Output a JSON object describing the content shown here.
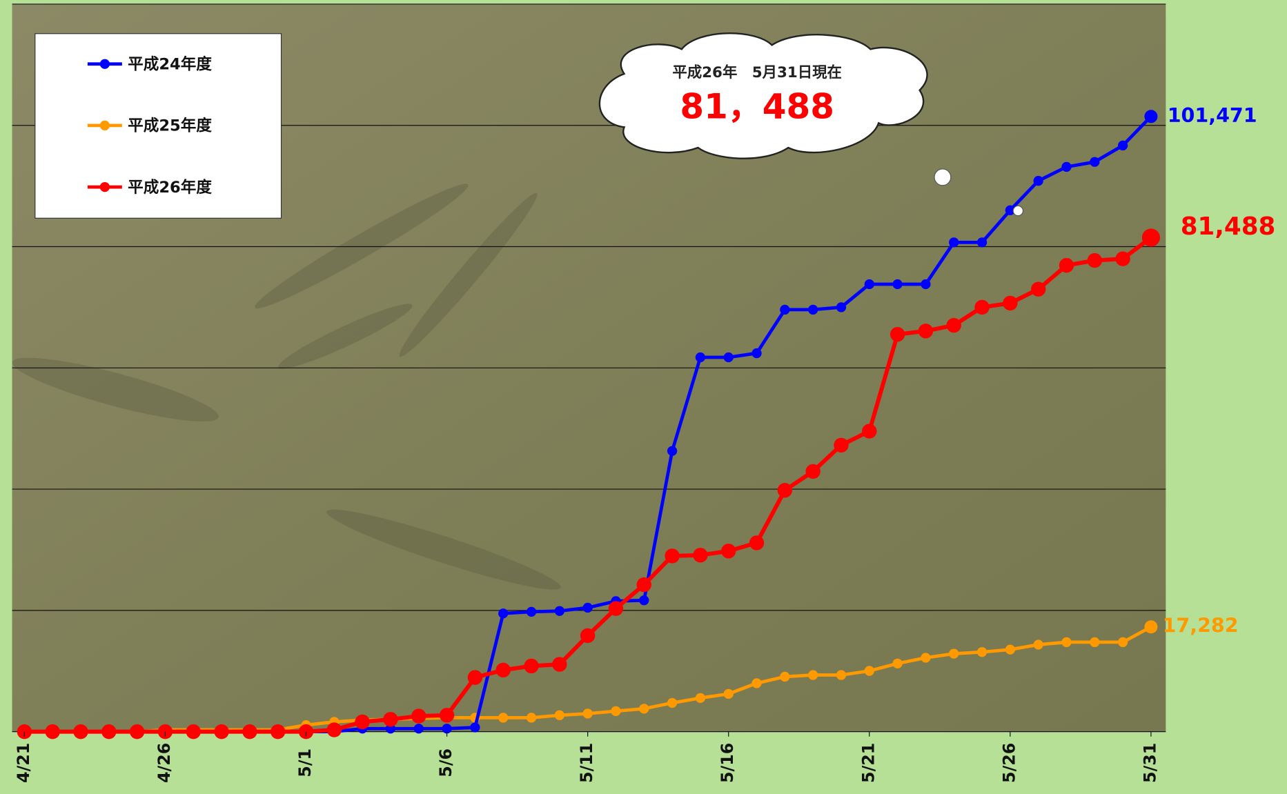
{
  "chart_data": {
    "type": "line",
    "categories": [
      "4/21",
      null,
      null,
      null,
      null,
      "4/26",
      null,
      null,
      null,
      null,
      "5/1",
      null,
      null,
      null,
      null,
      "5/6",
      null,
      null,
      null,
      null,
      "5/11",
      null,
      null,
      null,
      null,
      "5/16",
      null,
      null,
      null,
      null,
      "5/21",
      null,
      null,
      null,
      null,
      "5/26",
      null,
      null,
      null,
      null,
      "5/31"
    ],
    "series": [
      {
        "name": "平成25年度",
        "color": "#ff9900",
        "values": [
          0,
          0,
          0,
          0,
          0,
          300,
          300,
          300,
          300,
          300,
          1080,
          1620,
          1900,
          2030,
          2170,
          2300,
          2300,
          2300,
          2300,
          2710,
          2980,
          3390,
          3790,
          4740,
          5550,
          6230,
          7990,
          9070,
          9340,
          9340,
          10020,
          11240,
          12190,
          12860,
          13130,
          13540,
          14350,
          14760,
          14760,
          14760,
          17282
        ],
        "value_labels": [
          null,
          null,
          null,
          null,
          null,
          null,
          null,
          null,
          null,
          null,
          null,
          null,
          null,
          null,
          null,
          null,
          null,
          null,
          null,
          null,
          null,
          null,
          null,
          null,
          null,
          null,
          null,
          null,
          null,
          null,
          null,
          null,
          null,
          null,
          null,
          null,
          null,
          null,
          null,
          null,
          "17,282"
        ]
      },
      {
        "name": "平成24年度",
        "color": "#0000ff",
        "values": [
          0,
          0,
          0,
          0,
          0,
          0,
          0,
          0,
          0,
          0,
          0,
          0,
          500,
          500,
          500,
          500,
          700,
          19500,
          19770,
          19900,
          20450,
          21530,
          21660,
          46300,
          61740,
          61740,
          62420,
          69600,
          69600,
          70000,
          73800,
          73800,
          73800,
          80700,
          80700,
          86000,
          90850,
          93150,
          93970,
          96680,
          101471
        ],
        "value_labels": [
          null,
          null,
          null,
          null,
          null,
          null,
          null,
          null,
          null,
          null,
          null,
          null,
          null,
          null,
          null,
          null,
          null,
          null,
          null,
          null,
          null,
          null,
          null,
          null,
          null,
          null,
          null,
          null,
          null,
          null,
          null,
          null,
          null,
          null,
          null,
          null,
          null,
          null,
          null,
          null,
          "101,471"
        ]
      },
      {
        "name": "平成26年度",
        "color": "#ff0000",
        "values": [
          0,
          0,
          0,
          0,
          0,
          0,
          0,
          0,
          0,
          0,
          0,
          300,
          1620,
          2030,
          2570,
          2710,
          8940,
          10160,
          10830,
          11100,
          15840,
          20310,
          24240,
          28980,
          29110,
          29790,
          31140,
          39810,
          42920,
          47250,
          49560,
          65530,
          66080,
          67020,
          70000,
          70680,
          72980,
          76910,
          77720,
          77990,
          81488
        ],
        "value_labels": [
          null,
          null,
          null,
          null,
          null,
          null,
          null,
          null,
          null,
          null,
          null,
          null,
          null,
          null,
          null,
          null,
          null,
          null,
          null,
          null,
          null,
          null,
          null,
          null,
          null,
          null,
          null,
          null,
          null,
          null,
          null,
          null,
          null,
          null,
          null,
          null,
          null,
          null,
          null,
          null,
          "81,488"
        ]
      }
    ],
    "legend_order": [
      1,
      0,
      2
    ],
    "legend": "upper left",
    "ylim": [
      0,
      120000
    ],
    "yticks": [
      0,
      20000,
      40000,
      60000,
      80000,
      100000,
      120000
    ],
    "grid": true,
    "annotation": {
      "date": "平成26年　5月31日現在",
      "value": "81，488"
    }
  }
}
